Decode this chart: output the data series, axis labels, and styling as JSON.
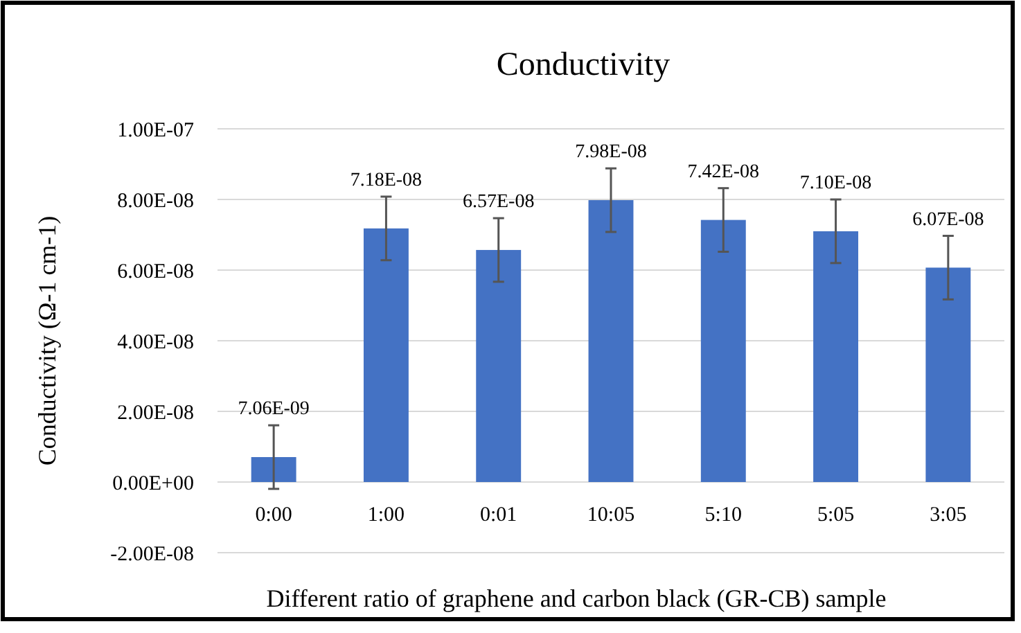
{
  "chart_data": {
    "type": "bar",
    "title": "Conductivity",
    "xlabel": "Different ratio of graphene and carbon black (GR-CB) sample",
    "ylabel": "Conductivity (Ω-1 cm-1)",
    "categories": [
      "0:00",
      "1:00",
      "0:01",
      "10:05",
      "5:10",
      "5:05",
      "3:05"
    ],
    "values": [
      7.06e-09,
      7.18e-08,
      6.57e-08,
      7.98e-08,
      7.42e-08,
      7.1e-08,
      6.07e-08
    ],
    "value_labels": [
      "7.06E-09",
      "7.18E-08",
      "6.57E-08",
      "7.98E-08",
      "7.42E-08",
      "7.10E-08",
      "6.07E-08"
    ],
    "errors": [
      9e-09,
      9e-09,
      9e-09,
      9e-09,
      9e-09,
      9e-09,
      9e-09
    ],
    "color": "#4472c4",
    "ylim": [
      -2e-08,
      1e-07
    ],
    "yticks": [
      {
        "value": -2e-08,
        "label": "-2.00E-08"
      },
      {
        "value": 0,
        "label": "0.00E+00"
      },
      {
        "value": 2e-08,
        "label": "2.00E-08"
      },
      {
        "value": 4e-08,
        "label": "4.00E-08"
      },
      {
        "value": 6e-08,
        "label": "6.00E-08"
      },
      {
        "value": 8e-08,
        "label": "8.00E-08"
      },
      {
        "value": 1e-07,
        "label": "1.00E-07"
      }
    ],
    "grid": "y"
  }
}
